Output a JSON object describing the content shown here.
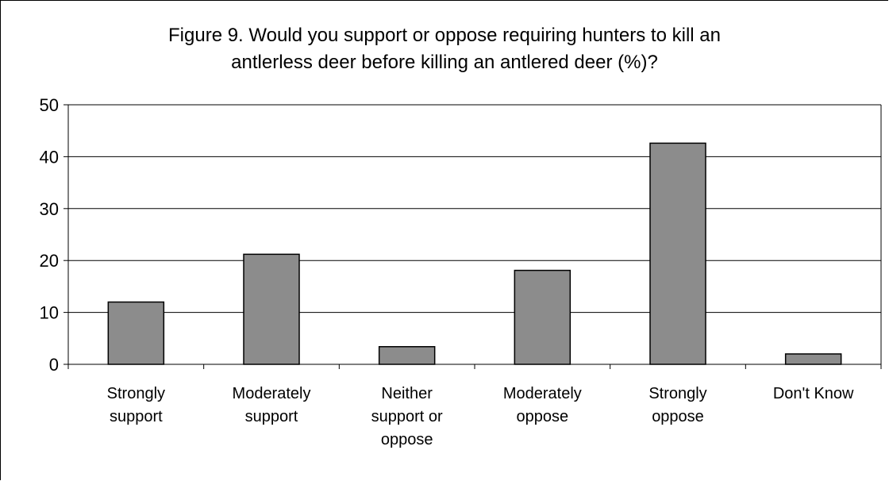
{
  "chart_data": {
    "type": "bar",
    "title_lines": [
      "Figure 9. Would you support or oppose requiring hunters to kill an",
      "antlerless deer before killing an antlered deer (%)?"
    ],
    "categories": [
      [
        "Strongly",
        "support"
      ],
      [
        "Moderately",
        "support"
      ],
      [
        "Neither",
        "support or",
        "oppose"
      ],
      [
        "Moderately",
        "oppose"
      ],
      [
        "Strongly",
        "oppose"
      ],
      [
        "Don't Know"
      ]
    ],
    "values": [
      12,
      21.2,
      3.4,
      18.1,
      42.6,
      2
    ],
    "ylim": [
      0,
      50
    ],
    "yticks": [
      "0",
      "10",
      "20",
      "30",
      "40",
      "50"
    ],
    "xlabel": "",
    "ylabel": "",
    "grid": true,
    "legend": "none",
    "colors": {
      "bar_fill": "#8c8c8c",
      "bar_stroke": "#000000",
      "grid": "#000000",
      "text": "#000000"
    }
  }
}
